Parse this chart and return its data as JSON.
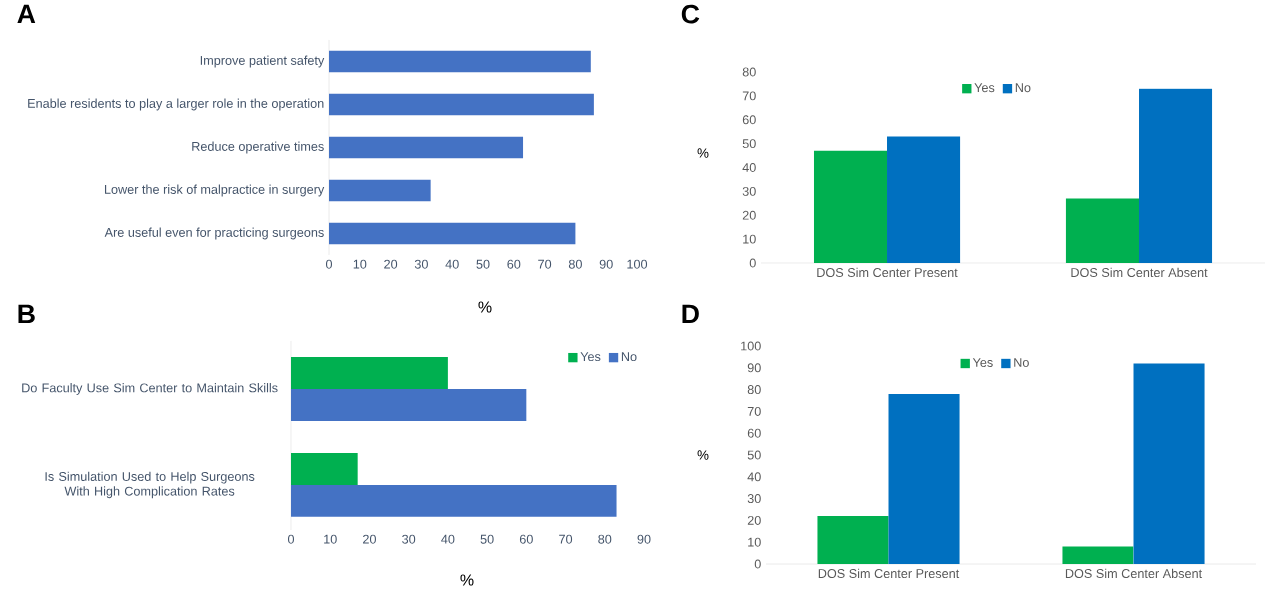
{
  "chart_data": [
    {
      "type": "bar",
      "title": "A",
      "orientation": "horizontal",
      "categories": [
        "Improve patient safety",
        "Enable residents to play a larger role in the operation",
        "Reduce operative times",
        "Lower the risk of malpractice in surgery",
        "Are useful even for practicing surgeons"
      ],
      "values": [
        85,
        86,
        63,
        33,
        80
      ],
      "color": "#4472c4",
      "xlabel": "%",
      "xlim": [
        0,
        100
      ],
      "xticks": [
        0,
        10,
        20,
        30,
        40,
        50,
        60,
        70,
        80,
        90,
        100
      ]
    },
    {
      "type": "bar",
      "title": "B",
      "orientation": "horizontal",
      "categories": [
        "Do Faculty Use Sim Center to Maintain Skills",
        "Is Simulation Used to Help Surgeons With High Complication Rates"
      ],
      "series": [
        {
          "name": "Yes",
          "color": "#00b050",
          "values": [
            40,
            17
          ]
        },
        {
          "name": "No",
          "color": "#4472c4",
          "values": [
            60,
            83
          ]
        }
      ],
      "xlabel": "%",
      "xlim": [
        0,
        90
      ],
      "xticks": [
        0,
        10,
        20,
        30,
        40,
        50,
        60,
        70,
        80,
        90
      ],
      "legend": "top right"
    },
    {
      "type": "bar",
      "title": "C",
      "categories": [
        "DOS Sim Center Present",
        "DOS Sim Center Absent"
      ],
      "series": [
        {
          "name": "Yes",
          "color": "#00b050",
          "values": [
            47,
            27
          ]
        },
        {
          "name": "No",
          "color": "#0070c0",
          "values": [
            53,
            73
          ]
        }
      ],
      "ylabel": "%",
      "ylim": [
        0,
        80
      ],
      "yticks": [
        0,
        10,
        20,
        30,
        40,
        50,
        60,
        70,
        80
      ],
      "legend": "top"
    },
    {
      "type": "bar",
      "title": "D",
      "categories": [
        "DOS Sim Center Present",
        "DOS Sim Center Absent"
      ],
      "series": [
        {
          "name": "Yes",
          "color": "#00b050",
          "values": [
            22,
            8
          ]
        },
        {
          "name": "No",
          "color": "#0070c0",
          "values": [
            78,
            92
          ]
        }
      ],
      "ylabel": "%",
      "ylim": [
        0,
        100
      ],
      "yticks": [
        0,
        10,
        20,
        30,
        40,
        50,
        60,
        70,
        80,
        90,
        100
      ],
      "legend": "top"
    }
  ]
}
